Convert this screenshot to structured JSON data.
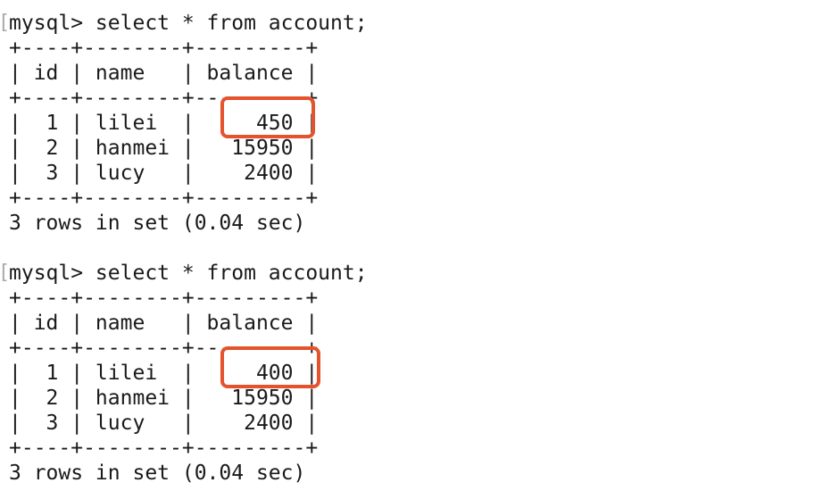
{
  "queries": [
    {
      "prompt": "mysql> select * from account;",
      "lines": [
        "+----+--------+---------+",
        "| id | name   | balance |",
        "+----+--------+---------+",
        "|  1 | lilei  |     450 |",
        "|  2 | hanmei |   15950 |",
        "|  3 | lucy   |    2400 |",
        "+----+--------+---------+"
      ],
      "footer": "3 rows in set (0.04 sec)",
      "rows": [
        {
          "id": "1",
          "name": "lilei",
          "balance": "450"
        },
        {
          "id": "2",
          "name": "hanmei",
          "balance": "15950"
        },
        {
          "id": "3",
          "name": "lucy",
          "balance": "2400"
        }
      ],
      "highlighted_value": "450"
    },
    {
      "prompt": "mysql> select * from account;",
      "lines": [
        "+----+--------+---------+",
        "| id | name   | balance |",
        "+----+--------+---------+",
        "|  1 | lilei  |     400 |",
        "|  2 | hanmei |   15950 |",
        "|  3 | lucy   |    2400 |",
        "+----+--------+---------+"
      ],
      "footer": "3 rows in set (0.04 sec)",
      "rows": [
        {
          "id": "1",
          "name": "lilei",
          "balance": "400"
        },
        {
          "id": "2",
          "name": "hanmei",
          "balance": "15950"
        },
        {
          "id": "3",
          "name": "lucy",
          "balance": "2400"
        }
      ],
      "highlighted_value": "400"
    }
  ],
  "colors": {
    "background": "#ffffff",
    "text": "#1a1a1a",
    "highlight": "#e5532d"
  }
}
